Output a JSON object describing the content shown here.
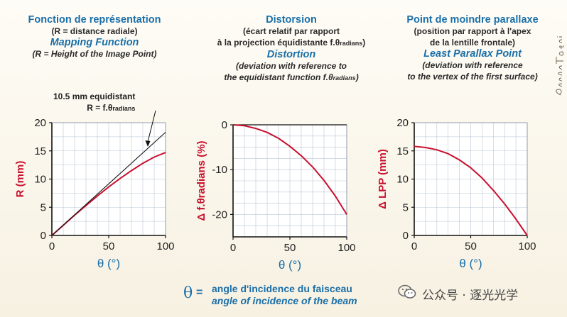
{
  "panels": [
    {
      "fr_title": "Fonction de représentation",
      "fr_sub1": "(R = distance radiale)",
      "fr_sub2": "",
      "en_title": "Mapping Function",
      "en_sub1": "(R = Height of the Image Point)",
      "en_sub2": ""
    },
    {
      "fr_title": "Distorsion",
      "fr_sub1": "(écart relatif par rapport",
      "fr_sub2_main": "à la projection équidistante f.θ",
      "fr_sub2_sub": "radians",
      "fr_sub2_end": ")",
      "en_title": "Distortion",
      "en_sub1": "(deviation with reference to",
      "en_sub2_main": "the equidistant function f.θ",
      "en_sub2_sub": "radians",
      "en_sub2_end": ")"
    },
    {
      "fr_title": "Point de moindre parallaxe",
      "fr_sub1": "(position par rapport à l'apex",
      "fr_sub2": "de la lentille frontale)",
      "en_title": "Least Parallax Point",
      "en_sub1": "(deviation with reference",
      "en_sub2": "to the vertex of the first surface)"
    }
  ],
  "annotation": {
    "line1": "10.5 mm equidistant",
    "line2_main": "R = f.θ",
    "line2_sub": "radians"
  },
  "legend": {
    "symbol": "θ",
    "equals": "=",
    "fr": "angle d'incidence du faisceau",
    "en": "angle of incidence of the beam"
  },
  "watermark": {
    "text": "公众号 · 逐光光学"
  },
  "signature": {
    "text": "Pierre Toscani"
  },
  "chart_data": [
    {
      "type": "line",
      "title": "",
      "xlabel": "θ (°)",
      "ylabel": "R (mm)",
      "xlim": [
        0,
        100
      ],
      "ylim": [
        0,
        20
      ],
      "xticks": [
        0,
        50,
        100
      ],
      "yticks": [
        0,
        5,
        10,
        15,
        20
      ],
      "grid": true,
      "series": [
        {
          "name": "",
          "color": "#c8102e",
          "x": [
            0,
            10,
            20,
            30,
            40,
            50,
            60,
            70,
            80,
            90,
            100
          ],
          "y": [
            0,
            1.8,
            3.6,
            5.3,
            7.0,
            8.6,
            10.1,
            11.5,
            12.8,
            13.9,
            14.7
          ]
        },
        {
          "name": "10.5 mm equidistant R = f.θradians",
          "color": "#111111",
          "x": [
            0,
            100
          ],
          "y": [
            0,
            18.3
          ]
        }
      ]
    },
    {
      "type": "line",
      "title": "",
      "xlabel": "θ (°)",
      "ylabel": "Δ f.θradians (%)",
      "xlim": [
        0,
        100
      ],
      "ylim": [
        -25,
        0
      ],
      "xticks": [
        0,
        50,
        100
      ],
      "yticks": [
        0,
        -10,
        -20
      ],
      "grid": true,
      "series": [
        {
          "name": "",
          "color": "#c8102e",
          "x": [
            0,
            10,
            20,
            30,
            40,
            50,
            60,
            70,
            80,
            90,
            100
          ],
          "y": [
            0,
            -0.2,
            -0.8,
            -1.7,
            -3.0,
            -4.8,
            -6.9,
            -9.4,
            -12.4,
            -15.9,
            -20.0
          ]
        }
      ]
    },
    {
      "type": "line",
      "title": "",
      "xlabel": "θ (°)",
      "ylabel": "Δ LPP (mm)",
      "xlim": [
        0,
        100
      ],
      "ylim": [
        0,
        20
      ],
      "xticks": [
        0,
        50,
        100
      ],
      "yticks": [
        0,
        5,
        10,
        15,
        20
      ],
      "grid": true,
      "series": [
        {
          "name": "",
          "color": "#c8102e",
          "x": [
            0,
            10,
            20,
            30,
            40,
            50,
            60,
            70,
            80,
            90,
            100
          ],
          "y": [
            15.8,
            15.6,
            15.2,
            14.5,
            13.4,
            12.0,
            10.2,
            8.0,
            5.6,
            2.9,
            0
          ]
        }
      ]
    }
  ]
}
